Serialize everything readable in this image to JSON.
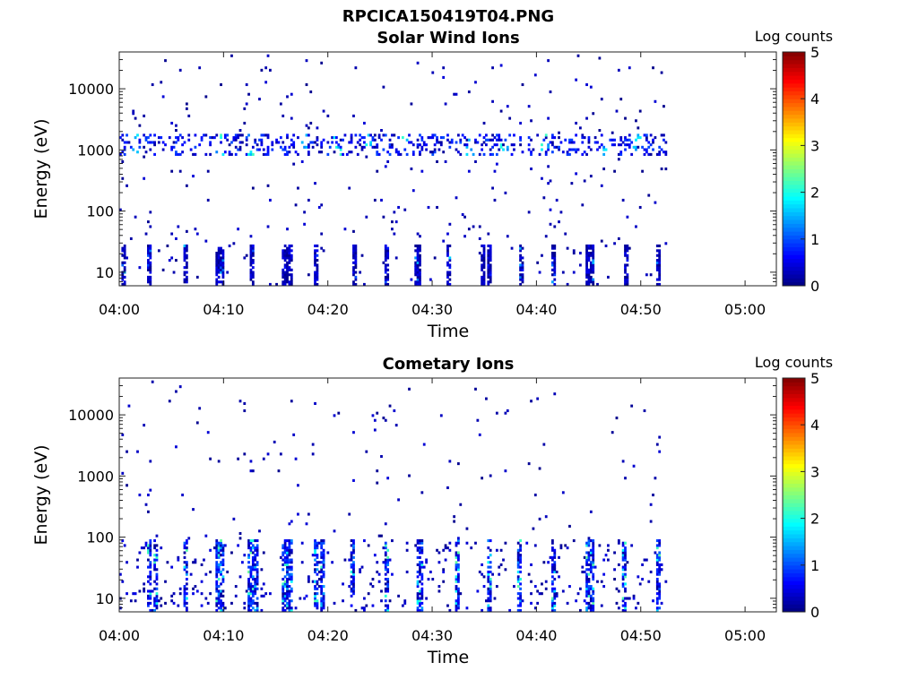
{
  "figure": {
    "title": "RPCICA150419T04.PNG"
  },
  "chart_data": [
    {
      "type": "heatmap",
      "title": "Solar Wind Ions",
      "xlabel": "Time",
      "ylabel": "Energy (eV)",
      "x_ticks": [
        "04:00",
        "04:10",
        "04:20",
        "04:30",
        "04:40",
        "04:50",
        "05:00"
      ],
      "x_range_minutes": [
        0,
        63
      ],
      "data_extent_minutes": [
        0,
        52.5
      ],
      "y_scale": "log",
      "y_ticks": [
        10,
        100,
        1000,
        10000
      ],
      "y_tick_labels": [
        "10",
        "100",
        "1000",
        "10000"
      ],
      "ylim": [
        6,
        40000
      ],
      "colorbar": {
        "label": "Log counts",
        "min": 0,
        "max": 5,
        "ticks": [
          "0",
          "1",
          "2",
          "3",
          "4",
          "5"
        ],
        "colormap": "jet"
      },
      "dominant_band_eV": [
        800,
        1800
      ],
      "low_energy_bursts_eV": [
        6,
        28
      ],
      "burst_minutes": [
        0.3,
        2.8,
        6.3,
        9.3,
        9.8,
        12.6,
        15.8,
        16.3,
        18.8,
        22.5,
        25.5,
        28.5,
        31.5,
        34.8,
        35.3,
        38.5,
        41.5,
        44.8,
        45.3,
        48.5,
        51.5
      ],
      "band_hot_minutes": [
        1.3,
        9.5,
        12.5,
        17.5,
        20.8,
        23.8,
        27.3,
        33.5,
        36.8,
        40.7,
        46.5,
        49.5
      ],
      "max_log_counts": 2.2
    },
    {
      "type": "heatmap",
      "title": "Cometary Ions",
      "xlabel": "Time",
      "ylabel": "Energy (eV)",
      "x_ticks": [
        "04:00",
        "04:10",
        "04:20",
        "04:30",
        "04:40",
        "04:50",
        "05:00"
      ],
      "x_range_minutes": [
        0,
        63
      ],
      "data_extent_minutes": [
        0,
        52.5
      ],
      "y_scale": "log",
      "y_ticks": [
        10,
        100,
        1000,
        10000
      ],
      "y_tick_labels": [
        "10",
        "100",
        "1000",
        "10000"
      ],
      "ylim": [
        6,
        40000
      ],
      "colorbar": {
        "label": "Log counts",
        "min": 0,
        "max": 5,
        "ticks": [
          "0",
          "1",
          "2",
          "3",
          "4",
          "5"
        ],
        "colormap": "jet"
      },
      "low_energy_band_eV": [
        6,
        90
      ],
      "burst_minutes": [
        2.8,
        3.3,
        6.3,
        9.3,
        9.8,
        12.5,
        13.0,
        15.8,
        16.3,
        18.8,
        19.3,
        22.3,
        25.5,
        28.7,
        32.3,
        35.3,
        38.3,
        41.5,
        44.8,
        45.3,
        48.3,
        51.5
      ],
      "max_log_counts": 2.6
    }
  ]
}
